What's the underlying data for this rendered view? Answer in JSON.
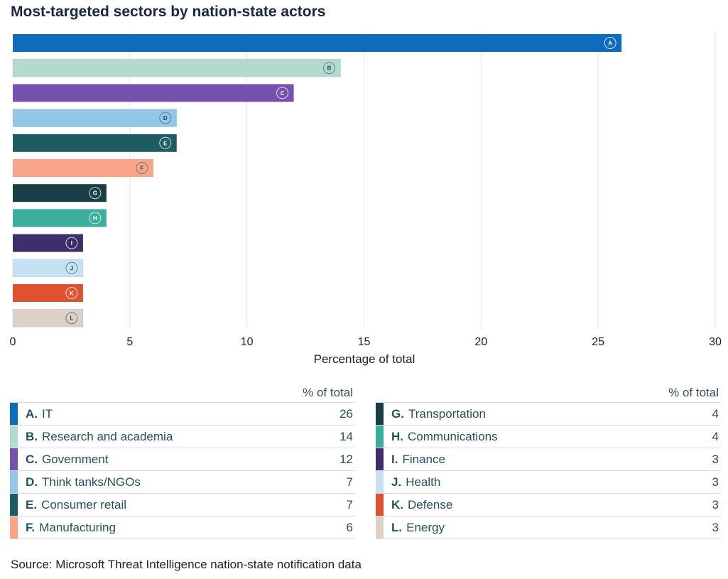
{
  "title": "Most-targeted sectors by nation-state actors",
  "chart_data": {
    "type": "bar",
    "orientation": "horizontal",
    "categories": [
      "A",
      "B",
      "C",
      "D",
      "E",
      "F",
      "G",
      "H",
      "I",
      "J",
      "K",
      "L"
    ],
    "values": [
      26,
      14,
      12,
      7,
      7,
      6,
      4,
      4,
      3,
      3,
      3,
      3
    ],
    "colors": [
      "#0F6CBD",
      "#B4DAD0",
      "#7751AE",
      "#92C7E8",
      "#1F5B63",
      "#F9A58A",
      "#1A3E45",
      "#3BAE9E",
      "#3E2E6A",
      "#C6E1F4",
      "#DF5230",
      "#DDD0C5"
    ],
    "xlabel": "Percentage of total",
    "xlim": [
      0,
      30
    ],
    "xticks": [
      "0",
      "5",
      "10",
      "15",
      "20",
      "25",
      "30"
    ],
    "grid": "vertical"
  },
  "table": {
    "header": "% of total",
    "left": [
      {
        "letter": "A.",
        "name": "IT",
        "value": "26",
        "color": "#0F6CBD"
      },
      {
        "letter": "B.",
        "name": "Research and academia",
        "value": "14",
        "color": "#B4DAD0"
      },
      {
        "letter": "C.",
        "name": "Government",
        "value": "12",
        "color": "#7751AE"
      },
      {
        "letter": "D.",
        "name": "Think tanks/NGOs",
        "value": "7",
        "color": "#92C7E8"
      },
      {
        "letter": "E.",
        "name": "Consumer retail",
        "value": "7",
        "color": "#1F5B63"
      },
      {
        "letter": "F.",
        "name": "Manufacturing",
        "value": "6",
        "color": "#F9A58A"
      }
    ],
    "right": [
      {
        "letter": "G.",
        "name": "Transportation",
        "value": "4",
        "color": "#1A3E45"
      },
      {
        "letter": "H.",
        "name": "Communications",
        "value": "4",
        "color": "#3BAE9E"
      },
      {
        "letter": "I.",
        "name": "Finance",
        "value": "3",
        "color": "#3E2E6A"
      },
      {
        "letter": "J.",
        "name": "Health",
        "value": "3",
        "color": "#C6E1F4"
      },
      {
        "letter": "K.",
        "name": "Defense",
        "value": "3",
        "color": "#DF5230"
      },
      {
        "letter": "L.",
        "name": "Energy",
        "value": "3",
        "color": "#DDD0C5"
      }
    ]
  },
  "source": "Source: Microsoft Threat Intelligence nation-state notification data"
}
